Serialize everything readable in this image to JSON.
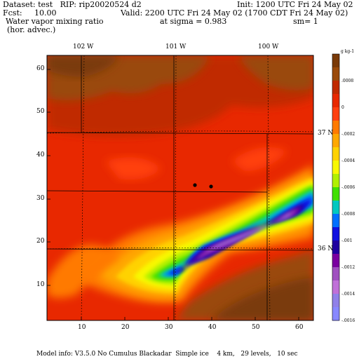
{
  "header": {
    "dataset": "Dataset: test   RIP: rip20020524 d2",
    "init": "Init: 1200 UTC Fri 24 May 02",
    "fcst": "Fcst:     10.00",
    "valid": "Valid: 2200 UTC Fri 24 May 02 (1700 CDT Fri 24 May 02)",
    "field": "Water vapor mixing ratio",
    "sigma": "at sigma = 0.983",
    "sm": "sm= 1",
    "advection": "(hor. advec.)"
  },
  "footer": "Model info: V3.5.0 No Cumulus Blackadar  Simple ice    4 km,   29 levels,   10 sec",
  "map": {
    "lon_labels": [
      "102 W",
      "101 W",
      "100 W"
    ],
    "lat_labels": [
      "37 N",
      "36 N"
    ],
    "x_ticks": [
      "10",
      "20",
      "30",
      "40",
      "50",
      "60"
    ],
    "y_ticks": [
      "10",
      "20",
      "30",
      "40",
      "50",
      "60"
    ]
  },
  "legend": {
    "unit": "g kg-1",
    "labels": [
      ".0008",
      "0",
      "-.0002",
      "-.0004",
      "-.0006",
      "-.0008",
      "-.001",
      "-.0012",
      "-.0014",
      "-.0016"
    ],
    "colors": [
      "#7a3a08",
      "#9a4a0a",
      "#c02a00",
      "#e82800",
      "#ff4010",
      "#ff7a00",
      "#ffa800",
      "#ffd200",
      "#f8f800",
      "#b0f000",
      "#40e000",
      "#00c8c0",
      "#0070ff",
      "#1010e0",
      "#2000a0",
      "#7a00a0",
      "#a050c0",
      "#c070d8",
      "#9080e8",
      "#8888ff"
    ]
  },
  "colors": {
    "ocean_red": "#e82800",
    "dark_red": "#c02a00",
    "brown": "#7a3a08"
  }
}
